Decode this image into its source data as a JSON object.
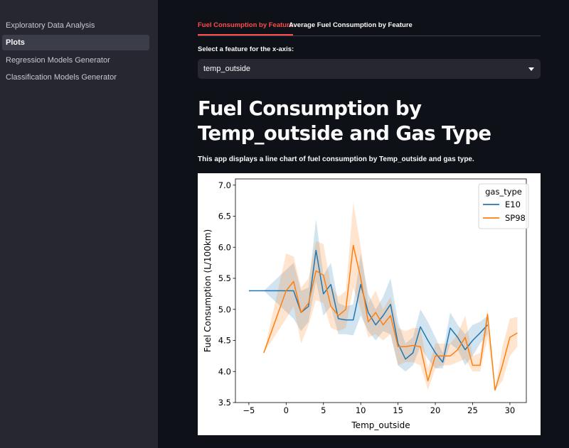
{
  "sidebar": {
    "items": [
      {
        "label": "Exploratory Data Analysis",
        "active": false
      },
      {
        "label": "Plots",
        "active": true
      },
      {
        "label": "Regression Models Generator",
        "active": false
      },
      {
        "label": "Classification Models Generator",
        "active": false
      }
    ]
  },
  "tabs": [
    {
      "label": "Fuel Consumption by Feature",
      "active": true
    },
    {
      "label": "Average Fuel Consumption by Feature",
      "active": false
    }
  ],
  "select": {
    "label": "Select a feature for the x-axis:",
    "value": "temp_outside",
    "icon": "chevron-down-icon"
  },
  "page": {
    "title": "Fuel Consumption by Temp_outside and Gas Type",
    "description": "This app displays a line chart of fuel consumption by Temp_outside and gas type."
  },
  "colors": {
    "accent": "#ff4b4b",
    "E10": "#1f77b4",
    "SP98": "#ff7f0e"
  },
  "chart_data": {
    "type": "line",
    "xlabel": "Temp_outside",
    "ylabel": "Fuel Consumption (L/100km)",
    "xlim": [
      -6.8,
      32.2
    ],
    "ylim": [
      3.5,
      7.1
    ],
    "xticks": [
      -5,
      0,
      5,
      10,
      15,
      20,
      25,
      30
    ],
    "yticks": [
      3.5,
      4.0,
      4.5,
      5.0,
      5.5,
      6.0,
      6.5,
      7.0
    ],
    "legend": {
      "title": "gas_type",
      "placement": "top-right"
    },
    "grid": false,
    "series": [
      {
        "name": "E10",
        "color": "#1f77b4",
        "x": [
          -5,
          -3,
          1,
          2,
          3,
          4,
          5,
          6,
          7,
          8,
          9,
          10,
          11,
          12,
          13,
          14,
          15,
          16,
          17,
          18,
          19,
          20,
          21,
          22,
          23,
          24,
          25,
          26,
          27
        ],
        "y": [
          5.3,
          5.3,
          5.3,
          4.95,
          5.05,
          5.95,
          5.25,
          5.4,
          4.85,
          4.83,
          4.83,
          5.4,
          4.95,
          4.75,
          4.9,
          5.08,
          4.45,
          4.2,
          4.3,
          4.72,
          4.5,
          4.3,
          4.15,
          4.7,
          4.55,
          4.35,
          4.5,
          4.62,
          4.75
        ],
        "ci_low": [
          5.3,
          5.3,
          4.85,
          4.65,
          4.8,
          5.45,
          4.9,
          5.05,
          4.6,
          4.6,
          4.58,
          4.9,
          4.65,
          4.5,
          4.65,
          4.6,
          4.1,
          4.0,
          4.1,
          4.4,
          4.2,
          4.05,
          4.05,
          4.45,
          4.35,
          4.1,
          4.25,
          4.45,
          4.6
        ],
        "ci_high": [
          5.3,
          5.3,
          5.75,
          5.3,
          5.35,
          6.45,
          5.55,
          5.75,
          5.1,
          5.05,
          5.08,
          5.9,
          5.25,
          5.0,
          5.2,
          5.5,
          4.8,
          4.45,
          4.55,
          5.0,
          4.8,
          4.55,
          4.3,
          4.95,
          4.75,
          4.6,
          4.75,
          4.8,
          4.9
        ]
      },
      {
        "name": "SP98",
        "color": "#ff7f0e",
        "x": [
          -3,
          0,
          1,
          2,
          3,
          4,
          5,
          6,
          7,
          8,
          9,
          10,
          11,
          12,
          13,
          14,
          15,
          16,
          17,
          18,
          19,
          20,
          21,
          22,
          23,
          24,
          25,
          26,
          27,
          28,
          29,
          30,
          31
        ],
        "y": [
          4.3,
          5.3,
          5.45,
          4.95,
          5.1,
          5.62,
          5.55,
          5.05,
          4.9,
          5.0,
          6.03,
          5.5,
          4.8,
          4.95,
          4.75,
          4.9,
          4.4,
          4.4,
          4.42,
          4.4,
          3.85,
          4.25,
          4.25,
          4.25,
          4.35,
          4.55,
          4.1,
          4.1,
          4.92,
          3.7,
          4.1,
          4.55,
          4.62
        ],
        "ci_low": [
          4.3,
          4.85,
          5.05,
          4.45,
          4.75,
          5.15,
          5.1,
          4.7,
          4.65,
          4.7,
          5.35,
          5.0,
          4.55,
          4.6,
          4.5,
          4.6,
          4.1,
          4.15,
          4.15,
          4.1,
          3.7,
          4.05,
          4.1,
          4.1,
          4.15,
          4.2,
          4.0,
          4.0,
          4.55,
          3.7,
          3.85,
          4.25,
          4.4
        ],
        "ci_high": [
          4.3,
          5.9,
          5.85,
          5.35,
          5.5,
          6.1,
          6.05,
          5.4,
          5.2,
          5.3,
          6.72,
          6.0,
          5.1,
          5.3,
          5.0,
          5.2,
          4.7,
          4.65,
          4.7,
          4.7,
          4.05,
          4.45,
          4.45,
          4.45,
          4.6,
          4.9,
          4.25,
          4.3,
          5.0,
          3.7,
          4.4,
          4.85,
          4.88
        ]
      }
    ]
  }
}
